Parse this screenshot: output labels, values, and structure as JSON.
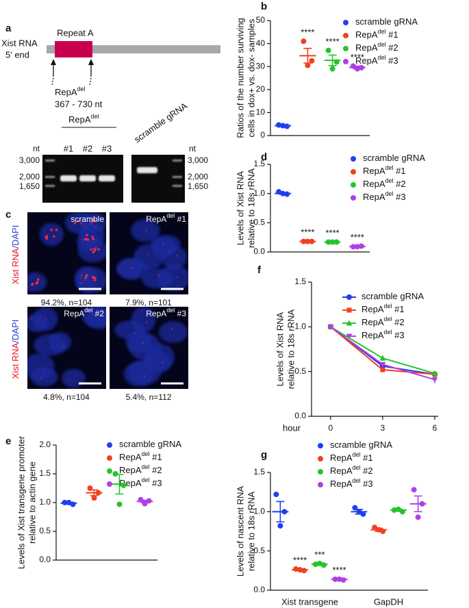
{
  "panel_a": {
    "letter": "a",
    "gene": "Xist RNA",
    "end": "5' end",
    "region": "Repeat A",
    "deletion": [
      "RepA",
      "del"
    ],
    "range": "367 - 730 nt",
    "gel": {
      "group": [
        "RepA",
        "del"
      ],
      "lanes": [
        "#1",
        "#2",
        "#3"
      ],
      "control": "scramble gRNA",
      "unit_left": "nt",
      "markers_left": [
        "3,000",
        "2,000",
        "1,650"
      ],
      "unit_right": "nt",
      "markers_right": [
        "3,000",
        "2,000",
        "1,650"
      ]
    }
  },
  "panel_c": {
    "letter": "c",
    "stain": [
      "Xist RNA",
      "/DAPI"
    ],
    "images": [
      {
        "label": [
          "scramble"
        ],
        "caption": "94.2%, n=104"
      },
      {
        "label": [
          "RepA",
          "del",
          " #1"
        ],
        "caption": "7.9%, n=101"
      },
      {
        "label": [
          "RepA",
          "del",
          " #2"
        ],
        "caption": "4.8%, n=104"
      },
      {
        "label": [
          "RepA",
          "del",
          " #3"
        ],
        "caption": "5.4%, n=112"
      }
    ]
  },
  "chart_data": [
    {
      "type": "dot",
      "letter": "b",
      "ylabel": [
        "Ratios of the number surviving",
        "cells in dox+ vs. dox- samples"
      ],
      "categories": [
        null
      ],
      "ylim": [
        0,
        50
      ],
      "yticks": [
        0,
        10,
        20,
        30,
        40,
        50
      ],
      "series": [
        {
          "name": [
            "scramble gRNA"
          ],
          "color": "#1f3ff0",
          "values": [
            [
              4.6,
              4.0,
              4.3
            ]
          ],
          "mean": [
            4.3
          ],
          "sem": [
            0.2
          ]
        },
        {
          "name": [
            "RepA",
            "del",
            " #1"
          ],
          "color": "#f0401e",
          "values": [
            [
              41,
              32.5,
              30.5
            ]
          ],
          "mean": [
            34.7
          ],
          "sem": [
            3.2
          ],
          "labels": [
            "****"
          ]
        },
        {
          "name": [
            "RepA",
            "del",
            " #2"
          ],
          "color": "#25c42a",
          "values": [
            [
              37,
              32,
              29
            ]
          ],
          "mean": [
            32.7
          ],
          "sem": [
            2.3
          ],
          "labels": [
            "****"
          ]
        },
        {
          "name": [
            "RepA",
            "del",
            " #3"
          ],
          "color": "#b03fe6",
          "values": [
            [
              30.2,
              29.5,
              29
            ]
          ],
          "mean": [
            29.6
          ],
          "sem": [
            0.6
          ],
          "labels": [
            "****"
          ]
        }
      ]
    },
    {
      "type": "dot",
      "letter": "d",
      "ylabel": [
        "Levels of Xist RNA",
        "relative to 18s rRNA"
      ],
      "categories": [
        null
      ],
      "ylim": [
        0,
        1.5
      ],
      "yticks": [
        {
          "value": 0,
          "label": "0.0"
        },
        0.5,
        {
          "value": 1,
          "label": "1.0"
        },
        1.5
      ],
      "series": [
        {
          "name": [
            "scramble gRNA"
          ],
          "color": "#1f3ff0",
          "values": [
            [
              1.03,
              0.99,
              1.0
            ]
          ],
          "mean": [
            1.0
          ],
          "sem": [
            0.01
          ]
        },
        {
          "name": [
            "RepA",
            "del",
            " #1"
          ],
          "color": "#f0401e",
          "values": [
            [
              0.18,
              0.18,
              0.18
            ]
          ],
          "mean": [
            0.18
          ],
          "sem": [
            0.005
          ],
          "labels": [
            "****"
          ]
        },
        {
          "name": [
            "RepA",
            "del",
            " #2"
          ],
          "color": "#25c42a",
          "values": [
            [
              0.17,
              0.17,
              0.17
            ]
          ],
          "mean": [
            0.17
          ],
          "sem": [
            0.005
          ],
          "labels": [
            "****"
          ]
        },
        {
          "name": [
            "RepA",
            "del",
            " #3"
          ],
          "color": "#b03fe6",
          "values": [
            [
              0.09,
              0.1,
              0.09
            ]
          ],
          "mean": [
            0.093
          ],
          "sem": [
            0.003
          ],
          "labels": [
            "****"
          ]
        }
      ]
    },
    {
      "type": "line",
      "letter": "f",
      "ylabel": [
        "Levels of Xist RNA",
        "relative to 18s rRNA"
      ],
      "xlabel": "hour",
      "x": [
        0,
        3,
        6
      ],
      "xlim": [
        -1.1,
        6.2
      ],
      "xticks": [
        0,
        3,
        6
      ],
      "ylim": [
        0,
        1.5
      ],
      "yticks": [
        {
          "value": 0,
          "label": "0.0"
        },
        0.5,
        {
          "value": 1,
          "label": "1.0"
        },
        1.5
      ],
      "series": [
        {
          "name": [
            "scramble gRNA"
          ],
          "color": "#1f3ff0",
          "marker": "circle",
          "values": [
            1.0,
            0.56,
            0.47
          ],
          "sem": [
            0.01,
            0.02,
            0.02
          ]
        },
        {
          "name": [
            "RepA",
            "del",
            " #1"
          ],
          "color": "#f0401e",
          "marker": "square",
          "values": [
            1.0,
            0.52,
            0.47
          ],
          "sem": [
            0.01,
            0.02,
            0.02
          ]
        },
        {
          "name": [
            "RepA",
            "del",
            " #2"
          ],
          "color": "#25c42a",
          "marker": "triangle",
          "values": [
            1.0,
            0.65,
            0.48
          ],
          "sem": [
            0.01,
            0.03,
            0.02
          ]
        },
        {
          "name": [
            "RepA",
            "del",
            " #3"
          ],
          "color": "#b03fe6",
          "marker": "triangle-down",
          "values": [
            1.0,
            0.58,
            0.41
          ],
          "sem": [
            0.01,
            0.02,
            0.04
          ]
        }
      ]
    },
    {
      "type": "dot",
      "letter": "e",
      "ylabel": [
        "Levels of Xist transgene promoter",
        "relative to actin gene"
      ],
      "categories": [
        null
      ],
      "ylim": [
        0,
        2
      ],
      "yticks": [
        {
          "value": 0,
          "label": "0.0"
        },
        0.5,
        {
          "value": 1,
          "label": "1.0"
        },
        1.5,
        {
          "value": 2,
          "label": "2.0"
        }
      ],
      "series": [
        {
          "name": [
            "scramble gRNA"
          ],
          "color": "#1f3ff0",
          "values": [
            [
              1.0,
              0.97,
              1.0
            ]
          ],
          "mean": [
            0.99
          ],
          "sem": [
            0.01
          ]
        },
        {
          "name": [
            "RepA",
            "del",
            " #1"
          ],
          "color": "#f0401e",
          "values": [
            [
              1.25,
              1.17,
              1.08
            ]
          ],
          "mean": [
            1.17
          ],
          "sem": [
            0.05
          ]
        },
        {
          "name": [
            "RepA",
            "del",
            " #2"
          ],
          "color": "#25c42a",
          "values": [
            [
              1.5,
              1.3,
              0.97
            ]
          ],
          "mean": [
            1.32
          ],
          "sem": [
            0.17
          ]
        },
        {
          "name": [
            "RepA",
            "del",
            " #3"
          ],
          "color": "#b03fe6",
          "values": [
            [
              1.05,
              1.03,
              0.98
            ]
          ],
          "mean": [
            1.02
          ],
          "sem": [
            0.02
          ]
        }
      ]
    },
    {
      "type": "dot",
      "letter": "g",
      "ylabel": [
        "Levels of nascent RNA",
        "relative to 18s rRNA"
      ],
      "categories": [
        "Xist transgene",
        "GapDH"
      ],
      "ylim": [
        0,
        1.5
      ],
      "yticks": [
        {
          "value": 0,
          "label": "0.0"
        },
        0.5,
        {
          "value": 1,
          "label": "1.0"
        },
        1.5
      ],
      "series": [
        {
          "name": [
            "scramble gRNA"
          ],
          "color": "#1f3ff0",
          "values": [
            [
              1.22,
              1.0,
              0.82
            ],
            [
              1.05,
              0.97,
              1.0
            ]
          ],
          "mean": [
            1.0,
            1.0
          ],
          "sem": [
            0.13,
            0.03
          ]
        },
        {
          "name": [
            "RepA",
            "del",
            " #1"
          ],
          "color": "#f0401e",
          "values": [
            [
              0.27,
              0.25,
              0.26
            ],
            [
              0.8,
              0.75,
              0.77
            ]
          ],
          "mean": [
            0.26,
            0.77
          ],
          "sem": [
            0.01,
            0.02
          ],
          "labels": [
            "****",
            null
          ]
        },
        {
          "name": [
            "RepA",
            "del",
            " #2"
          ],
          "color": "#25c42a",
          "values": [
            [
              0.33,
              0.32,
              0.34
            ],
            [
              1.02,
              1.0,
              1.03
            ]
          ],
          "mean": [
            0.33,
            1.02
          ],
          "sem": [
            0.01,
            0.01
          ],
          "labels": [
            "***",
            null
          ]
        },
        {
          "name": [
            "RepA",
            "del",
            " #3"
          ],
          "color": "#b03fe6",
          "values": [
            [
              0.14,
              0.13,
              0.14
            ],
            [
              1.28,
              1.1,
              0.93
            ]
          ],
          "mean": [
            0.14,
            1.1
          ],
          "sem": [
            0.005,
            0.1
          ],
          "labels": [
            "****",
            null
          ]
        }
      ]
    }
  ]
}
